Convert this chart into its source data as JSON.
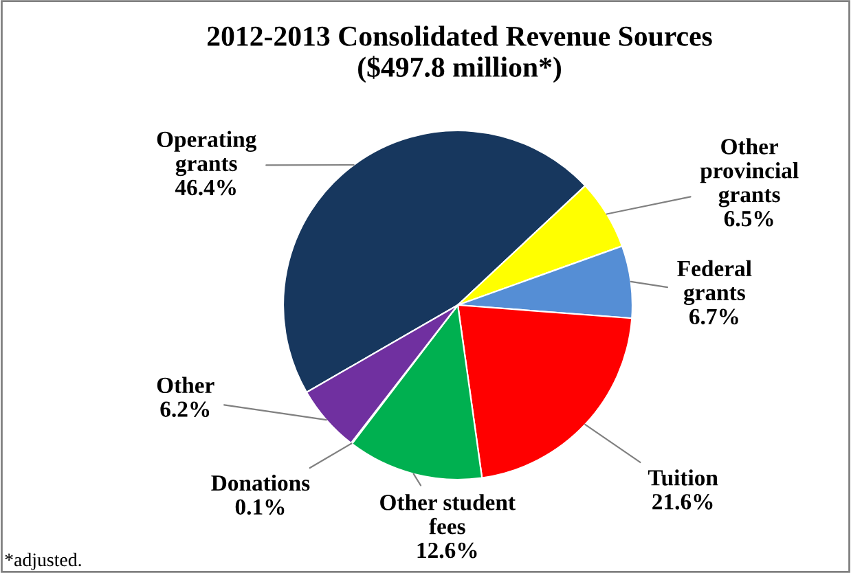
{
  "chart_data": {
    "type": "pie",
    "title": "2012-2013 Consolidated Revenue Sources\n($497.8 million*)",
    "categories": [
      "Operating\ngrants",
      "Other\nprovincial\ngrants",
      "Federal\ngrants",
      "Tuition",
      "Other student\nfees",
      "Donations",
      "Other"
    ],
    "values": [
      46.4,
      6.5,
      6.7,
      21.6,
      12.6,
      0.1,
      6.2
    ],
    "value_labels": [
      "46.4%",
      "6.5%",
      "6.7%",
      "21.6%",
      "12.6%",
      "0.1%",
      "6.2%"
    ],
    "colors": [
      "#17375e",
      "#ffff00",
      "#558ed5",
      "#ff0000",
      "#00b050",
      "#f79646",
      "#7030a0"
    ],
    "annotations": [
      "*adjusted."
    ],
    "legend": false
  }
}
